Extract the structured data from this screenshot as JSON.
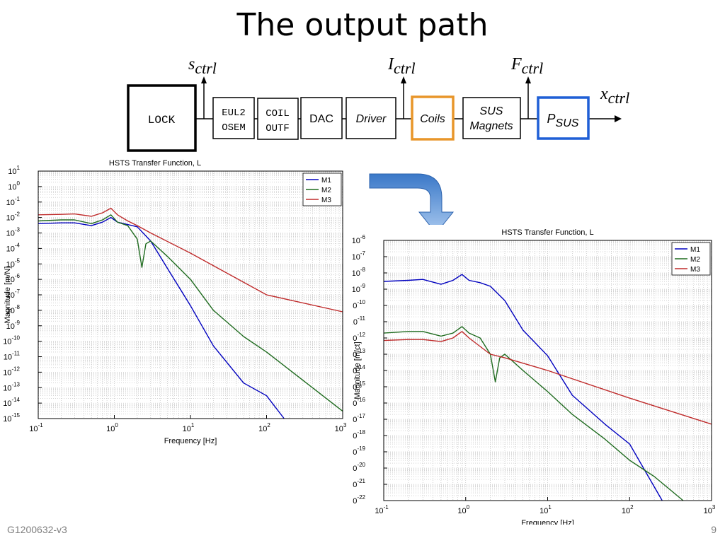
{
  "slide": {
    "title": "The output path",
    "footer_doc": "G1200632-v3",
    "footer_page": "9"
  },
  "diagram": {
    "blocks": [
      {
        "id": "lock",
        "lines": [
          "LOCK"
        ],
        "style": "mono",
        "border": "#000000"
      },
      {
        "id": "eul2osem",
        "lines": [
          "EUL2",
          "OSEM"
        ],
        "style": "mono",
        "border": "#000000"
      },
      {
        "id": "coiloutf",
        "lines": [
          "COIL",
          "OUTF"
        ],
        "style": "mono",
        "border": "#000000"
      },
      {
        "id": "dac",
        "lines": [
          "DAC"
        ],
        "style": "sans",
        "border": "#000000"
      },
      {
        "id": "driver",
        "lines": [
          "Driver"
        ],
        "style": "italic",
        "border": "#000000"
      },
      {
        "id": "coils",
        "lines": [
          "Coils"
        ],
        "style": "italic",
        "border": "#e8962a"
      },
      {
        "id": "susmagnets",
        "lines": [
          "SUS",
          "Magnets"
        ],
        "style": "italic",
        "border": "#000000"
      },
      {
        "id": "psus",
        "lines": [
          "P",
          "SUS"
        ],
        "style": "italic-sub",
        "border": "#1f5fd6"
      }
    ],
    "signals": [
      {
        "id": "s_ctrl",
        "base": "s",
        "sub": "ctrl"
      },
      {
        "id": "i_ctrl",
        "base": "I",
        "sub": "ctrl"
      },
      {
        "id": "f_ctrl",
        "base": "F",
        "sub": "ctrl"
      },
      {
        "id": "x_ctrl",
        "base": "x",
        "sub": "ctrl"
      }
    ]
  },
  "colors": {
    "m1": "#0000bf",
    "m2": "#1f6b1f",
    "m3": "#bf2b2b",
    "coils_border": "#e8962a",
    "psus_border": "#1f5fd6",
    "arrow_top": "#3a78c8",
    "arrow_bottom": "#a9c9ef"
  },
  "chart_data": [
    {
      "type": "line",
      "title": "HSTS Transfer Function, L",
      "xlabel": "Frequency [Hz]",
      "ylabel": "Magnitude [m/N]",
      "xscale": "log",
      "yscale": "log",
      "xlim": [
        0.1,
        1000
      ],
      "ylim": [
        1e-15,
        10
      ],
      "x_ticks": [
        {
          "base": "10",
          "exp": "-1"
        },
        {
          "base": "10",
          "exp": "0"
        },
        {
          "base": "10",
          "exp": "1"
        },
        {
          "base": "10",
          "exp": "2"
        },
        {
          "base": "10",
          "exp": "3"
        }
      ],
      "y_ticks": [
        {
          "base": "10",
          "exp": "1"
        },
        {
          "base": "10",
          "exp": "0"
        },
        {
          "base": "10",
          "exp": "-1"
        },
        {
          "base": "10",
          "exp": "-2"
        },
        {
          "base": "10",
          "exp": "-3"
        },
        {
          "base": "10",
          "exp": "-4"
        },
        {
          "base": "10",
          "exp": "-5"
        },
        {
          "base": "10",
          "exp": "-6"
        },
        {
          "base": "10",
          "exp": "-7"
        },
        {
          "base": "10",
          "exp": "-8"
        },
        {
          "base": "10",
          "exp": "-9"
        },
        {
          "base": "10",
          "exp": "-10"
        },
        {
          "base": "10",
          "exp": "-11"
        },
        {
          "base": "10",
          "exp": "-12"
        },
        {
          "base": "10",
          "exp": "-13"
        },
        {
          "base": "10",
          "exp": "-14"
        },
        {
          "base": "10",
          "exp": "-15"
        }
      ],
      "grid": true,
      "legend": "top-right",
      "series": [
        {
          "name": "M1",
          "color": "#0000bf",
          "points": [
            [
              0.1,
              0.004
            ],
            [
              0.2,
              0.0045
            ],
            [
              0.3,
              0.0045
            ],
            [
              0.5,
              0.003
            ],
            [
              0.7,
              0.005
            ],
            [
              0.9,
              0.01
            ],
            [
              1.1,
              0.005
            ],
            [
              1.5,
              0.0035
            ],
            [
              2,
              0.0025
            ],
            [
              3,
              0.0003
            ],
            [
              5,
              5e-06
            ],
            [
              10,
              2e-08
            ],
            [
              20,
              5e-11
            ],
            [
              50,
              2e-13
            ],
            [
              100,
              3e-14
            ],
            [
              170,
              1e-15
            ]
          ]
        },
        {
          "name": "M2",
          "color": "#1f6b1f",
          "points": [
            [
              0.1,
              0.006
            ],
            [
              0.2,
              0.007
            ],
            [
              0.3,
              0.007
            ],
            [
              0.5,
              0.004
            ],
            [
              0.7,
              0.007
            ],
            [
              0.9,
              0.015
            ],
            [
              1.1,
              0.005
            ],
            [
              1.5,
              0.003
            ],
            [
              2,
              0.0004
            ],
            [
              2.3,
              6e-06
            ],
            [
              2.6,
              0.0002
            ],
            [
              3,
              0.0003
            ],
            [
              5,
              3e-05
            ],
            [
              10,
              1e-06
            ],
            [
              20,
              1e-08
            ],
            [
              50,
              2e-10
            ],
            [
              100,
              2e-11
            ],
            [
              300,
              3e-13
            ],
            [
              1000,
              3e-15
            ]
          ]
        },
        {
          "name": "M3",
          "color": "#bf2b2b",
          "points": [
            [
              0.1,
              0.015
            ],
            [
              0.2,
              0.016
            ],
            [
              0.3,
              0.017
            ],
            [
              0.5,
              0.012
            ],
            [
              0.7,
              0.02
            ],
            [
              0.9,
              0.04
            ],
            [
              1.1,
              0.015
            ],
            [
              1.5,
              0.006
            ],
            [
              2,
              0.003
            ],
            [
              3,
              0.001
            ],
            [
              10,
              5e-05
            ],
            [
              100,
              1e-07
            ],
            [
              1000,
              8e-09
            ]
          ]
        }
      ]
    },
    {
      "type": "line",
      "title": "HSTS Transfer Function, L",
      "xlabel": "Frequency [Hz]",
      "ylabel": "Magnitude [m/ct]",
      "xscale": "log",
      "yscale": "log",
      "xlim": [
        0.1,
        1000
      ],
      "ylim": [
        1e-22,
        1e-06
      ],
      "x_ticks": [
        {
          "base": "10",
          "exp": "-1"
        },
        {
          "base": "10",
          "exp": "0"
        },
        {
          "base": "10",
          "exp": "1"
        },
        {
          "base": "10",
          "exp": "2"
        },
        {
          "base": "10",
          "exp": "3"
        }
      ],
      "y_ticks": [
        {
          "base": "10",
          "exp": "-6"
        },
        {
          "base": "10",
          "exp": "-7"
        },
        {
          "base": "10",
          "exp": "-8"
        },
        {
          "base": "10",
          "exp": "-9"
        },
        {
          "base": "10",
          "exp": "-10"
        },
        {
          "base": "10",
          "exp": "-11"
        },
        {
          "base": "10",
          "exp": "-12"
        },
        {
          "base": "10",
          "exp": "-13"
        },
        {
          "base": "10",
          "exp": "-14"
        },
        {
          "base": "10",
          "exp": "-15"
        },
        {
          "base": "10",
          "exp": "-16"
        },
        {
          "base": "10",
          "exp": "-17"
        },
        {
          "base": "10",
          "exp": "-18"
        },
        {
          "base": "10",
          "exp": "-19"
        },
        {
          "base": "10",
          "exp": "-20"
        },
        {
          "base": "10",
          "exp": "-21"
        },
        {
          "base": "10",
          "exp": "-22"
        }
      ],
      "grid": true,
      "legend": "top-right",
      "series": [
        {
          "name": "M1",
          "color": "#0000bf",
          "points": [
            [
              0.1,
              3e-09
            ],
            [
              0.2,
              3.5e-09
            ],
            [
              0.3,
              4e-09
            ],
            [
              0.5,
              2e-09
            ],
            [
              0.7,
              3.5e-09
            ],
            [
              0.9,
              8e-09
            ],
            [
              1.1,
              3.5e-09
            ],
            [
              1.5,
              2.5e-09
            ],
            [
              2,
              1.5e-09
            ],
            [
              3,
              2e-10
            ],
            [
              5,
              3e-12
            ],
            [
              10,
              8e-14
            ],
            [
              20,
              3e-16
            ],
            [
              50,
              5e-18
            ],
            [
              100,
              3e-19
            ],
            [
              250,
              1e-22
            ]
          ]
        },
        {
          "name": "M2",
          "color": "#1f6b1f",
          "points": [
            [
              0.1,
              2e-12
            ],
            [
              0.2,
              2.5e-12
            ],
            [
              0.3,
              2.5e-12
            ],
            [
              0.5,
              1.3e-12
            ],
            [
              0.7,
              2e-12
            ],
            [
              0.9,
              5e-12
            ],
            [
              1.1,
              2e-12
            ],
            [
              1.5,
              1e-12
            ],
            [
              2,
              1e-13
            ],
            [
              2.3,
              2e-15
            ],
            [
              2.6,
              6e-14
            ],
            [
              3,
              1e-13
            ],
            [
              5,
              1e-14
            ],
            [
              10,
              5e-16
            ],
            [
              20,
              2e-17
            ],
            [
              50,
              6e-19
            ],
            [
              100,
              3e-20
            ],
            [
              200,
              3e-21
            ],
            [
              450,
              1e-22
            ]
          ]
        },
        {
          "name": "M3",
          "color": "#bf2b2b",
          "points": [
            [
              0.1,
              7e-13
            ],
            [
              0.2,
              8e-13
            ],
            [
              0.3,
              8e-13
            ],
            [
              0.5,
              6e-13
            ],
            [
              0.7,
              1e-12
            ],
            [
              0.9,
              2.5e-12
            ],
            [
              1.1,
              1e-12
            ],
            [
              1.5,
              3e-13
            ],
            [
              2,
              1e-13
            ],
            [
              3,
              6e-14
            ],
            [
              10,
              1e-14
            ],
            [
              100,
              2e-16
            ],
            [
              1000,
              5e-18
            ]
          ]
        }
      ]
    }
  ]
}
